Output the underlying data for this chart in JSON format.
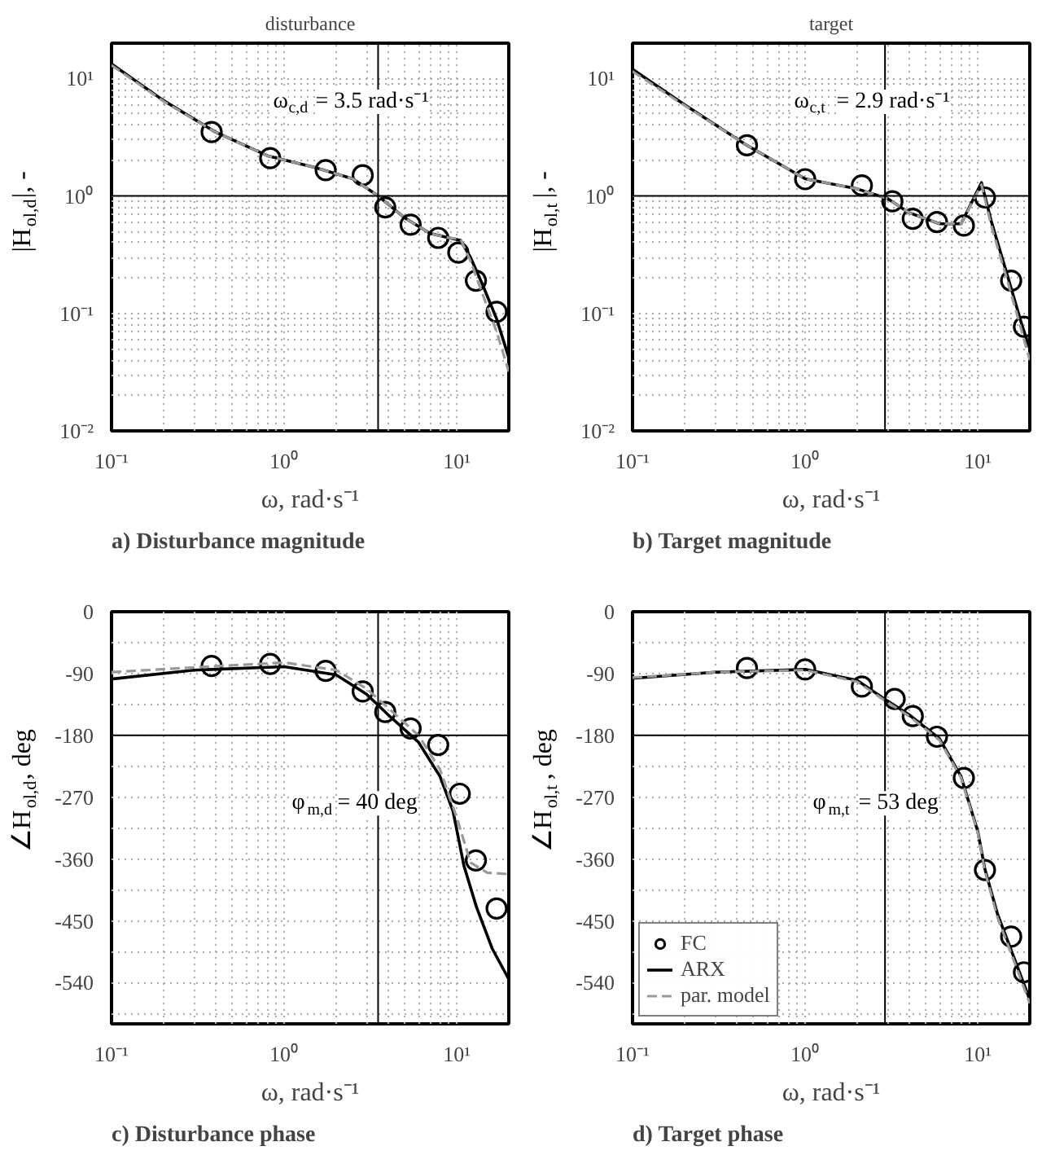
{
  "chart_data": [
    {
      "type": "line",
      "title": "disturbance",
      "xlabel": "ω, rad·s⁻¹",
      "ylabel": "|H$_{ol,d}$|, -",
      "log": "xy",
      "grid": true,
      "legend": false,
      "xlim": [
        0.1,
        20
      ],
      "ylim": [
        0.01,
        20
      ],
      "xticks": [
        {
          "value": 0.1,
          "label": "10⁻¹"
        },
        {
          "value": 1,
          "label": "10⁰"
        },
        {
          "value": 10,
          "label": "10¹"
        }
      ],
      "yticks": [
        {
          "value": 0.01,
          "label": "10⁻²"
        },
        {
          "value": 0.1,
          "label": "10⁻¹"
        },
        {
          "value": 1,
          "label": "10⁰"
        },
        {
          "value": 10,
          "label": "10¹"
        }
      ],
      "ref_lines": [
        {
          "axis": "x",
          "value": 3.5,
          "color": "#000000"
        },
        {
          "axis": "y",
          "value": 1,
          "color": "#000000"
        }
      ],
      "annotations": [
        "ω$_{c,d}$ = 3.5 rad·s⁻¹",
        "a) Disturbance magnitude"
      ],
      "series": [
        {
          "type": "scatter",
          "marker": "circle",
          "color": "#000000",
          "x": [
            0.38,
            0.83,
            1.74,
            2.85,
            3.85,
            5.4,
            7.8,
            10.2,
            12.9,
            17
          ],
          "values": [
            3.5,
            2.1,
            1.66,
            1.5,
            0.8,
            0.57,
            0.44,
            0.33,
            0.19,
            0.103
          ]
        },
        {
          "type": "line",
          "color": "#000000",
          "line_style": "solid",
          "x": [
            0.1,
            0.2,
            0.4,
            0.8,
            1.5,
            2.5,
            3.5,
            5,
            7,
            9,
            10.5,
            12,
            14,
            17,
            20
          ],
          "values": [
            13.3,
            6.5,
            3.5,
            2.2,
            1.75,
            1.4,
            1.0,
            0.65,
            0.48,
            0.44,
            0.42,
            0.3,
            0.18,
            0.09,
            0.042
          ]
        },
        {
          "type": "line",
          "color": "#999999",
          "line_style": "dashed",
          "x": [
            0.1,
            0.2,
            0.4,
            0.8,
            1.5,
            2.5,
            3.5,
            5,
            7,
            9,
            10.5,
            12,
            14,
            17,
            20
          ],
          "values": [
            13,
            6.4,
            3.5,
            2.2,
            1.75,
            1.4,
            1.0,
            0.65,
            0.48,
            0.44,
            0.43,
            0.28,
            0.15,
            0.07,
            0.032
          ]
        }
      ]
    },
    {
      "type": "line",
      "title": "target",
      "xlabel": "ω, rad·s⁻¹",
      "ylabel": "|H$_{ol,t}$|, -",
      "log": "xy",
      "grid": true,
      "legend": false,
      "xlim": [
        0.1,
        20
      ],
      "ylim": [
        0.01,
        20
      ],
      "xticks": [
        {
          "value": 0.1,
          "label": "10⁻¹"
        },
        {
          "value": 1,
          "label": "10⁰"
        },
        {
          "value": 10,
          "label": "10¹"
        }
      ],
      "yticks": [
        {
          "value": 0.01,
          "label": "10⁻²"
        },
        {
          "value": 0.1,
          "label": "10⁻¹"
        },
        {
          "value": 1,
          "label": "10⁰"
        },
        {
          "value": 10,
          "label": "10¹"
        }
      ],
      "ref_lines": [
        {
          "axis": "x",
          "value": 2.9,
          "color": "#000000"
        },
        {
          "axis": "y",
          "value": 1,
          "color": "#000000"
        }
      ],
      "annotations": [
        "ω$_{c,t}$ = 2.9 rad·s⁻¹",
        "b) Target magnitude"
      ],
      "series": [
        {
          "type": "scatter",
          "marker": "circle",
          "color": "#000000",
          "x": [
            0.46,
            1.0,
            2.13,
            3.2,
            4.2,
            5.8,
            8.3,
            11,
            15.6,
            18.5
          ],
          "values": [
            2.7,
            1.39,
            1.23,
            0.9,
            0.64,
            0.6,
            0.56,
            0.97,
            0.19,
            0.077
          ]
        },
        {
          "type": "line",
          "color": "#000000",
          "line_style": "solid",
          "x": [
            0.1,
            0.2,
            0.46,
            1,
            2,
            3,
            4,
            6,
            8,
            10.5,
            12,
            15,
            18,
            20
          ],
          "values": [
            12,
            6,
            2.7,
            1.4,
            1.15,
            0.95,
            0.72,
            0.58,
            0.58,
            1.3,
            0.6,
            0.2,
            0.08,
            0.05
          ]
        },
        {
          "type": "line",
          "color": "#999999",
          "line_style": "dashed",
          "x": [
            0.1,
            0.2,
            0.46,
            1,
            2,
            3,
            4,
            6,
            8,
            10.5,
            12,
            15,
            18,
            20
          ],
          "values": [
            11.5,
            5.9,
            2.7,
            1.4,
            1.15,
            0.95,
            0.72,
            0.58,
            0.58,
            1.25,
            0.55,
            0.18,
            0.07,
            0.04
          ]
        }
      ]
    },
    {
      "type": "line",
      "xlabel": "ω, rad·s⁻¹",
      "ylabel": "∠H$_{ol,d}$, deg",
      "log": "x",
      "grid": true,
      "legend": false,
      "xlim": [
        0.1,
        20
      ],
      "ylim": [
        -600,
        0
      ],
      "xticks": [
        {
          "value": 0.1,
          "label": "10⁻¹"
        },
        {
          "value": 1,
          "label": "10⁰"
        },
        {
          "value": 10,
          "label": "10¹"
        }
      ],
      "yticks": [
        0,
        -90,
        -180,
        -270,
        -360,
        -450,
        -540
      ],
      "ref_lines": [
        {
          "axis": "x",
          "value": 3.5,
          "color": "#000000"
        },
        {
          "axis": "y",
          "value": -180,
          "color": "#000000"
        }
      ],
      "annotations": [
        "φ$_{m,d}$ = 40 deg",
        "c) Disturbance phase"
      ],
      "series": [
        {
          "type": "scatter",
          "marker": "circle",
          "color": "#000000",
          "x": [
            0.38,
            0.83,
            1.74,
            2.85,
            3.85,
            5.4,
            7.8,
            10.4,
            12.9,
            17
          ],
          "values": [
            -79,
            -76,
            -86,
            -116,
            -146,
            -170,
            -194,
            -265,
            -362,
            -432
          ]
        },
        {
          "type": "line",
          "color": "#000000",
          "line_style": "solid",
          "x": [
            0.1,
            0.3,
            1,
            2,
            3,
            4,
            6,
            8,
            9.5,
            11,
            13,
            16,
            20
          ],
          "values": [
            -98,
            -85,
            -80,
            -92,
            -120,
            -150,
            -190,
            -240,
            -290,
            -370,
            -430,
            -490,
            -535
          ]
        },
        {
          "type": "line",
          "color": "#999999",
          "line_style": "dashed",
          "x": [
            0.1,
            0.5,
            1,
            2,
            3,
            4,
            6,
            8,
            10,
            12,
            15,
            20
          ],
          "values": [
            -88,
            -78,
            -74,
            -85,
            -112,
            -140,
            -180,
            -230,
            -300,
            -365,
            -380,
            -382
          ]
        }
      ]
    },
    {
      "type": "line",
      "xlabel": "ω, rad·s⁻¹",
      "ylabel": "∠H$_{ol,t}$, deg",
      "log": "x",
      "grid": true,
      "legend": "bottom left",
      "xlim": [
        0.1,
        20
      ],
      "ylim": [
        -600,
        0
      ],
      "xticks": [
        {
          "value": 0.1,
          "label": "10⁻¹"
        },
        {
          "value": 1,
          "label": "10⁰"
        },
        {
          "value": 10,
          "label": "10¹"
        }
      ],
      "yticks": [
        0,
        -90,
        -180,
        -270,
        -360,
        -450,
        -540
      ],
      "ref_lines": [
        {
          "axis": "x",
          "value": 2.9,
          "color": "#000000"
        },
        {
          "axis": "y",
          "value": -180,
          "color": "#000000"
        }
      ],
      "annotations": [
        "φ$_{m,t}$ = 53 deg",
        "d) Target phase"
      ],
      "series": [
        {
          "type": "scatter",
          "name": "FC",
          "marker": "circle",
          "color": "#000000",
          "x": [
            0.46,
            1.0,
            2.13,
            3.3,
            4.2,
            5.8,
            8.3,
            11,
            15.6,
            18.5
          ],
          "values": [
            -82,
            -84,
            -109,
            -127,
            -152,
            -182,
            -242,
            -376,
            -473,
            -525
          ]
        },
        {
          "type": "line",
          "name": "ARX",
          "color": "#000000",
          "line_style": "solid",
          "x": [
            0.1,
            0.3,
            1,
            2,
            3,
            4,
            6,
            8,
            10,
            11,
            13,
            16,
            20
          ],
          "values": [
            -97,
            -88,
            -84,
            -100,
            -130,
            -150,
            -185,
            -240,
            -320,
            -375,
            -440,
            -500,
            -565
          ]
        },
        {
          "type": "line",
          "name": "par. model",
          "color": "#999999",
          "line_style": "dashed",
          "x": [
            0.1,
            0.3,
            1,
            2,
            3,
            4,
            6,
            8,
            10,
            11,
            13,
            16,
            20
          ],
          "values": [
            -96,
            -88,
            -85,
            -102,
            -132,
            -152,
            -187,
            -242,
            -322,
            -378,
            -445,
            -505,
            -570
          ]
        }
      ]
    }
  ]
}
